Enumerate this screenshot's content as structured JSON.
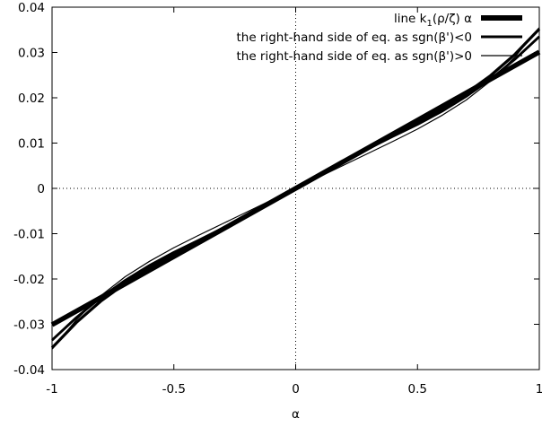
{
  "chart_data": {
    "type": "line",
    "title": "",
    "xlabel": "α",
    "ylabel": "",
    "xlim": [
      -1,
      1
    ],
    "ylim": [
      -0.04,
      0.04
    ],
    "x_ticks": [
      -1,
      -0.5,
      0,
      0.5,
      1
    ],
    "y_ticks": [
      -0.04,
      -0.03,
      -0.02,
      -0.01,
      0,
      0.01,
      0.02,
      0.03,
      0.04
    ],
    "x_tick_labels": [
      "-1",
      "-0.5",
      "0",
      "0.5",
      "1"
    ],
    "y_tick_labels": [
      "-0.04",
      "-0.03",
      "-0.02",
      "-0.01",
      "0",
      "0.01",
      "0.02",
      "0.03",
      "0.04"
    ],
    "zero_axes": "dotted",
    "grid": false,
    "legend_position": "top-right",
    "series": [
      {
        "name": "line k₁(ρ/ζ) α",
        "name_prefix": "line k",
        "name_subscript": "1",
        "name_suffix": "(ρ/ζ) α",
        "style": "thickest",
        "x": [
          -1,
          -0.75,
          -0.5,
          -0.25,
          0,
          0.25,
          0.5,
          0.75,
          1
        ],
        "y": [
          -0.0301,
          -0.0226,
          -0.01505,
          -0.00753,
          0,
          0.00753,
          0.01505,
          0.0226,
          0.0301
        ]
      },
      {
        "name": "the right-hand side of eq. as sgn(β')<0",
        "style": "medium",
        "x": [
          -1,
          -0.9,
          -0.8,
          -0.7,
          -0.6,
          -0.5,
          -0.4,
          -0.3,
          -0.2,
          -0.1,
          0,
          0.1,
          0.2,
          0.3,
          0.4,
          0.5,
          0.6,
          0.7,
          0.8,
          0.9,
          1
        ],
        "y": [
          -0.0335,
          -0.0285,
          -0.0241,
          -0.0203,
          -0.017,
          -0.0141,
          -0.0115,
          -0.0088,
          -0.0059,
          -0.003,
          0.0,
          0.003,
          0.0059,
          0.0088,
          0.0115,
          0.0141,
          0.017,
          0.0203,
          0.0241,
          0.0285,
          0.0335
        ]
      },
      {
        "name": "the right-hand side of eq. as sgn(β')>0",
        "style": "thin",
        "x": [
          -1,
          -0.9,
          -0.8,
          -0.7,
          -0.6,
          -0.5,
          -0.4,
          -0.3,
          -0.2,
          -0.1,
          0,
          0.1,
          0.2,
          0.3,
          0.4,
          0.5,
          0.6,
          0.7,
          0.8,
          0.9,
          1
        ],
        "y": [
          -0.0355,
          -0.029,
          -0.0237,
          -0.0195,
          -0.0161,
          -0.0131,
          -0.0104,
          -0.0078,
          -0.0052,
          -0.0026,
          0.0,
          0.0026,
          0.0052,
          0.0078,
          0.0104,
          0.0131,
          0.0161,
          0.0195,
          0.0237,
          0.029,
          0.0355
        ]
      },
      {
        "name": "",
        "style": "extra-bold-curve",
        "x": [
          -1,
          -0.9,
          -0.8,
          -0.7,
          -0.6,
          -0.5,
          -0.4,
          -0.3,
          -0.2,
          -0.1,
          0,
          0.1,
          0.2,
          0.3,
          0.4,
          0.5,
          0.6,
          0.7,
          0.8,
          0.9,
          1
        ],
        "y": [
          -0.0352,
          -0.0296,
          -0.0249,
          -0.021,
          -0.0176,
          -0.0146,
          -0.0117,
          -0.0089,
          -0.006,
          -0.003,
          0.0,
          0.003,
          0.006,
          0.0089,
          0.0117,
          0.0146,
          0.0176,
          0.021,
          0.0249,
          0.0296,
          0.0352
        ]
      }
    ]
  }
}
